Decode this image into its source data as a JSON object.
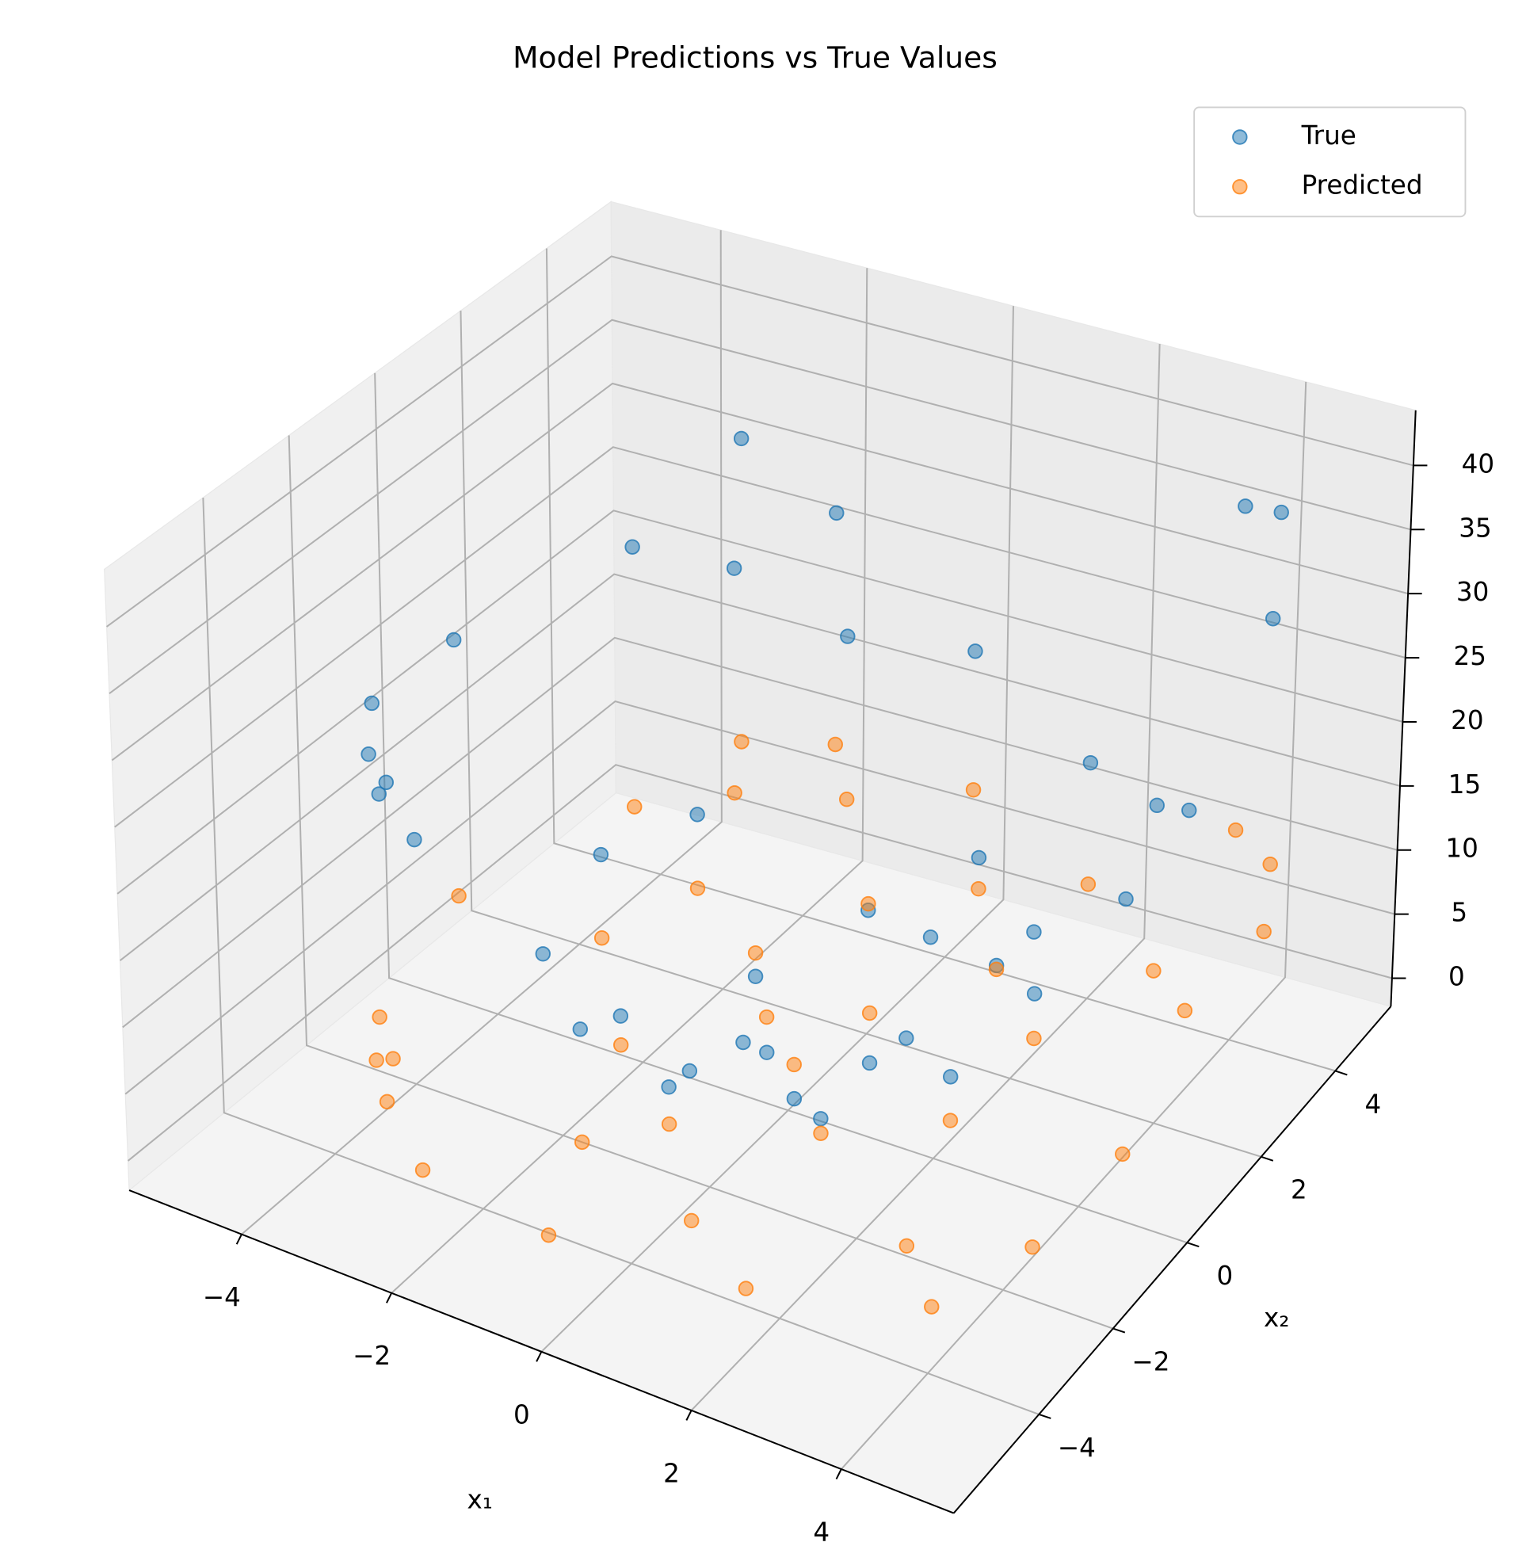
{
  "chart_data": {
    "type": "scatter3d",
    "title": "Model Predictions vs True Values",
    "x_label": "x₁",
    "y_label": "x₂",
    "x": [
      -4.6,
      -4.2,
      -3.8,
      -4.8,
      -3.5,
      -2.9,
      -3.2,
      -2.0,
      -3.9,
      -1.5,
      -2.4,
      -3.0,
      -1.8,
      -0.6,
      -1.1,
      0.3,
      0.8,
      -0.2,
      1.2,
      1.9,
      2.6,
      0.5,
      1.6,
      3.1,
      2.2,
      3.7,
      4.3,
      3.6,
      4.8,
      4.5,
      4.9,
      3.9,
      4.6,
      -0.9,
      -2.7,
      0.1,
      1.0,
      -1.3,
      2.9,
      -0.4
    ],
    "y": [
      -1.8,
      -2.6,
      -2.9,
      0.5,
      -3.6,
      3.9,
      4.6,
      4.8,
      3.2,
      4.2,
      2.1,
      0.8,
      -0.9,
      -1.9,
      1.2,
      -0.4,
      0.6,
      2.4,
      -1.4,
      1.8,
      -0.7,
      -3.4,
      -4.1,
      -2.8,
      3.6,
      2.5,
      4.4,
      4.8,
      3.3,
      1.8,
      -0.6,
      -3.7,
      -2.4,
      -4.4,
      -4.2,
      4.5,
      3.0,
      -2.8,
      0.9,
      0.2
    ],
    "series": [
      {
        "name": "True",
        "color": "#1f77b4",
        "values": [
          25.1,
          24.0,
          23.4,
          23.8,
          24.9,
          23.7,
          31.5,
          27.0,
          25.6,
          19.8,
          10.3,
          9.7,
          4.2,
          3.9,
          2.6,
          0.4,
          1.1,
          5.8,
          3.5,
          6.9,
          7.2,
          11.5,
          17.8,
          17.3,
          17.6,
          20.1,
          37.9,
          36.1,
          33.8,
          23.2,
          24.5,
          29.0,
          26.9,
          20.2,
          24.6,
          20.3,
          10.1,
          9.4,
          9.2,
          0.9
        ]
      },
      {
        "name": "Predicted",
        "color": "#ff7f0e",
        "values": [
          1.2,
          0.8,
          2.5,
          4.1,
          1.7,
          6.2,
          7.8,
          8.9,
          5.4,
          7.1,
          4.6,
          3.3,
          2.0,
          1.1,
          4.4,
          3.0,
          4.9,
          6.3,
          2.4,
          6.6,
          3.9,
          0.3,
          -0.5,
          1.8,
          8.2,
          7.4,
          10.6,
          10.9,
          9.7,
          7.9,
          5.3,
          1.6,
          3.4,
          -0.8,
          -0.2,
          9.5,
          7.7,
          0.9,
          5.8,
          3.6
        ]
      }
    ],
    "xlim": [
      -5.5,
      5.5
    ],
    "ylim": [
      -6.3,
      5.5
    ],
    "zlim": [
      -2.2,
      44.3
    ],
    "xticks": [
      {
        "value": -4,
        "label": "−4"
      },
      {
        "value": -2,
        "label": "−2"
      },
      0,
      2,
      4
    ],
    "yticks": [
      {
        "value": -4,
        "label": "−4"
      },
      {
        "value": -2,
        "label": "−2"
      },
      0,
      2,
      4
    ],
    "zticks": [
      0,
      5,
      10,
      15,
      20,
      25,
      30,
      35,
      40
    ],
    "grid": true,
    "legend": "upper right"
  }
}
